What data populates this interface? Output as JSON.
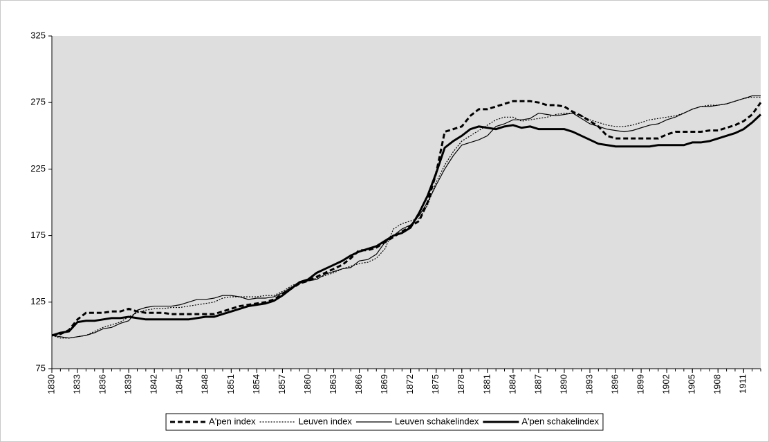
{
  "chart_data": {
    "type": "line",
    "x": [
      1830,
      1831,
      1832,
      1833,
      1834,
      1835,
      1836,
      1837,
      1838,
      1839,
      1840,
      1841,
      1842,
      1843,
      1844,
      1845,
      1846,
      1847,
      1848,
      1849,
      1850,
      1851,
      1852,
      1853,
      1854,
      1855,
      1856,
      1857,
      1858,
      1859,
      1860,
      1861,
      1862,
      1863,
      1864,
      1865,
      1866,
      1867,
      1868,
      1869,
      1870,
      1871,
      1872,
      1873,
      1874,
      1875,
      1876,
      1877,
      1878,
      1879,
      1880,
      1881,
      1882,
      1883,
      1884,
      1885,
      1886,
      1887,
      1888,
      1889,
      1890,
      1891,
      1892,
      1893,
      1894,
      1895,
      1896,
      1897,
      1898,
      1899,
      1900,
      1901,
      1902,
      1903,
      1904,
      1905,
      1906,
      1907,
      1908,
      1909,
      1910,
      1911,
      1912,
      1913
    ],
    "xlim": [
      1830,
      1913
    ],
    "xticks": [
      1830,
      1833,
      1836,
      1839,
      1842,
      1845,
      1848,
      1851,
      1854,
      1857,
      1860,
      1863,
      1866,
      1869,
      1872,
      1875,
      1878,
      1881,
      1884,
      1887,
      1890,
      1893,
      1896,
      1899,
      1902,
      1905,
      1908,
      1911
    ],
    "ylim": [
      75,
      325
    ],
    "yticks": [
      75,
      125,
      175,
      225,
      275,
      325
    ],
    "legend": "bottom",
    "series": [
      {
        "name": "A'pen index",
        "color": "#000000",
        "dash": "dashed",
        "weight": "thick",
        "values": [
          100,
          101,
          104,
          112,
          117,
          117,
          117,
          118,
          118,
          120,
          118,
          117,
          117,
          117,
          116,
          116,
          116,
          116,
          116,
          116,
          118,
          120,
          122,
          123,
          124,
          125,
          127,
          131,
          135,
          139,
          141,
          144,
          147,
          150,
          153,
          158,
          164,
          164,
          166,
          170,
          174,
          178,
          182,
          186,
          200,
          222,
          253,
          255,
          257,
          265,
          270,
          270,
          272,
          274,
          276,
          276,
          276,
          275,
          273,
          273,
          272,
          268,
          265,
          261,
          257,
          250,
          248,
          248,
          248,
          248,
          248,
          248,
          251,
          253,
          253,
          253,
          253,
          254,
          254,
          256,
          258,
          261,
          266,
          275
        ]
      },
      {
        "name": "Leuven index",
        "color": "#000000",
        "dash": "dotted",
        "weight": "thin",
        "values": [
          100,
          98,
          98,
          99,
          100,
          103,
          106,
          108,
          110,
          114,
          117,
          119,
          120,
          120,
          121,
          121,
          122,
          123,
          124,
          125,
          128,
          129,
          129,
          129,
          129,
          130,
          130,
          133,
          137,
          140,
          141,
          143,
          145,
          147,
          150,
          152,
          154,
          155,
          158,
          165,
          180,
          184,
          186,
          188,
          198,
          215,
          228,
          238,
          246,
          250,
          254,
          258,
          262,
          264,
          264,
          261,
          262,
          263,
          264,
          266,
          267,
          267,
          265,
          262,
          260,
          258,
          257,
          257,
          258,
          260,
          262,
          263,
          264,
          265,
          267,
          270,
          272,
          273,
          273,
          274,
          276,
          278,
          279,
          279
        ]
      },
      {
        "name": "Leuven schakelindex",
        "color": "#000000",
        "dash": "solid",
        "weight": "thin",
        "values": [
          100,
          99,
          98,
          99,
          100,
          102,
          105,
          106,
          109,
          111,
          119,
          121,
          122,
          122,
          122,
          123,
          125,
          127,
          127,
          128,
          130,
          130,
          129,
          127,
          128,
          128,
          129,
          132,
          136,
          139,
          141,
          142,
          146,
          148,
          150,
          151,
          156,
          157,
          161,
          170,
          175,
          180,
          183,
          190,
          200,
          213,
          225,
          235,
          243,
          245,
          247,
          250,
          257,
          259,
          262,
          262,
          263,
          267,
          266,
          265,
          266,
          267,
          263,
          259,
          257,
          255,
          254,
          253,
          254,
          256,
          258,
          259,
          262,
          264,
          267,
          270,
          272,
          272,
          273,
          274,
          276,
          278,
          280,
          280
        ]
      },
      {
        "name": "A'pen schakelindex",
        "color": "#000000",
        "dash": "solid",
        "weight": "thick",
        "values": [
          100,
          102,
          103,
          110,
          111,
          111,
          112,
          113,
          113,
          114,
          113,
          112,
          112,
          112,
          112,
          112,
          112,
          113,
          114,
          114,
          116,
          118,
          120,
          122,
          123,
          124,
          126,
          130,
          135,
          140,
          142,
          147,
          150,
          153,
          156,
          160,
          163,
          165,
          167,
          171,
          175,
          177,
          181,
          192,
          205,
          222,
          241,
          246,
          250,
          255,
          257,
          256,
          255,
          257,
          258,
          256,
          257,
          255,
          255,
          255,
          255,
          253,
          250,
          247,
          244,
          243,
          242,
          242,
          242,
          242,
          242,
          243,
          243,
          243,
          243,
          245,
          245,
          246,
          248,
          250,
          252,
          255,
          260,
          266
        ]
      }
    ]
  }
}
